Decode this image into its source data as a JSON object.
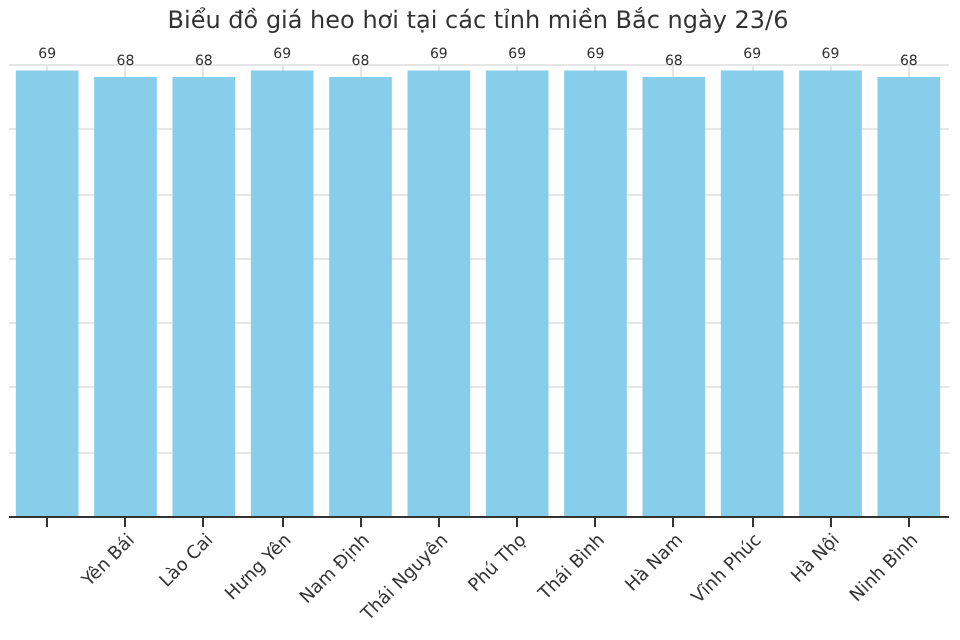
{
  "chart_data": {
    "type": "bar",
    "title": "Biểu đồ giá heo hơi tại các tỉnh miền Bắc ngày 23/6",
    "categories": [
      null,
      "Yên Bái",
      "Lào Cai",
      "Hưng Yên",
      "Nam Định",
      "Thái Nguyên",
      "Phú Thọ",
      "Thái Bình",
      "Hà Nam",
      "Vĩnh Phúc",
      "Hà Nội",
      "Ninh Bình"
    ],
    "values": [
      69,
      68,
      68,
      69,
      68,
      69,
      69,
      69,
      68,
      69,
      69,
      68
    ],
    "color": "#87ceeb",
    "data_labels": true,
    "grid": true,
    "tick_labels": "x"
  }
}
